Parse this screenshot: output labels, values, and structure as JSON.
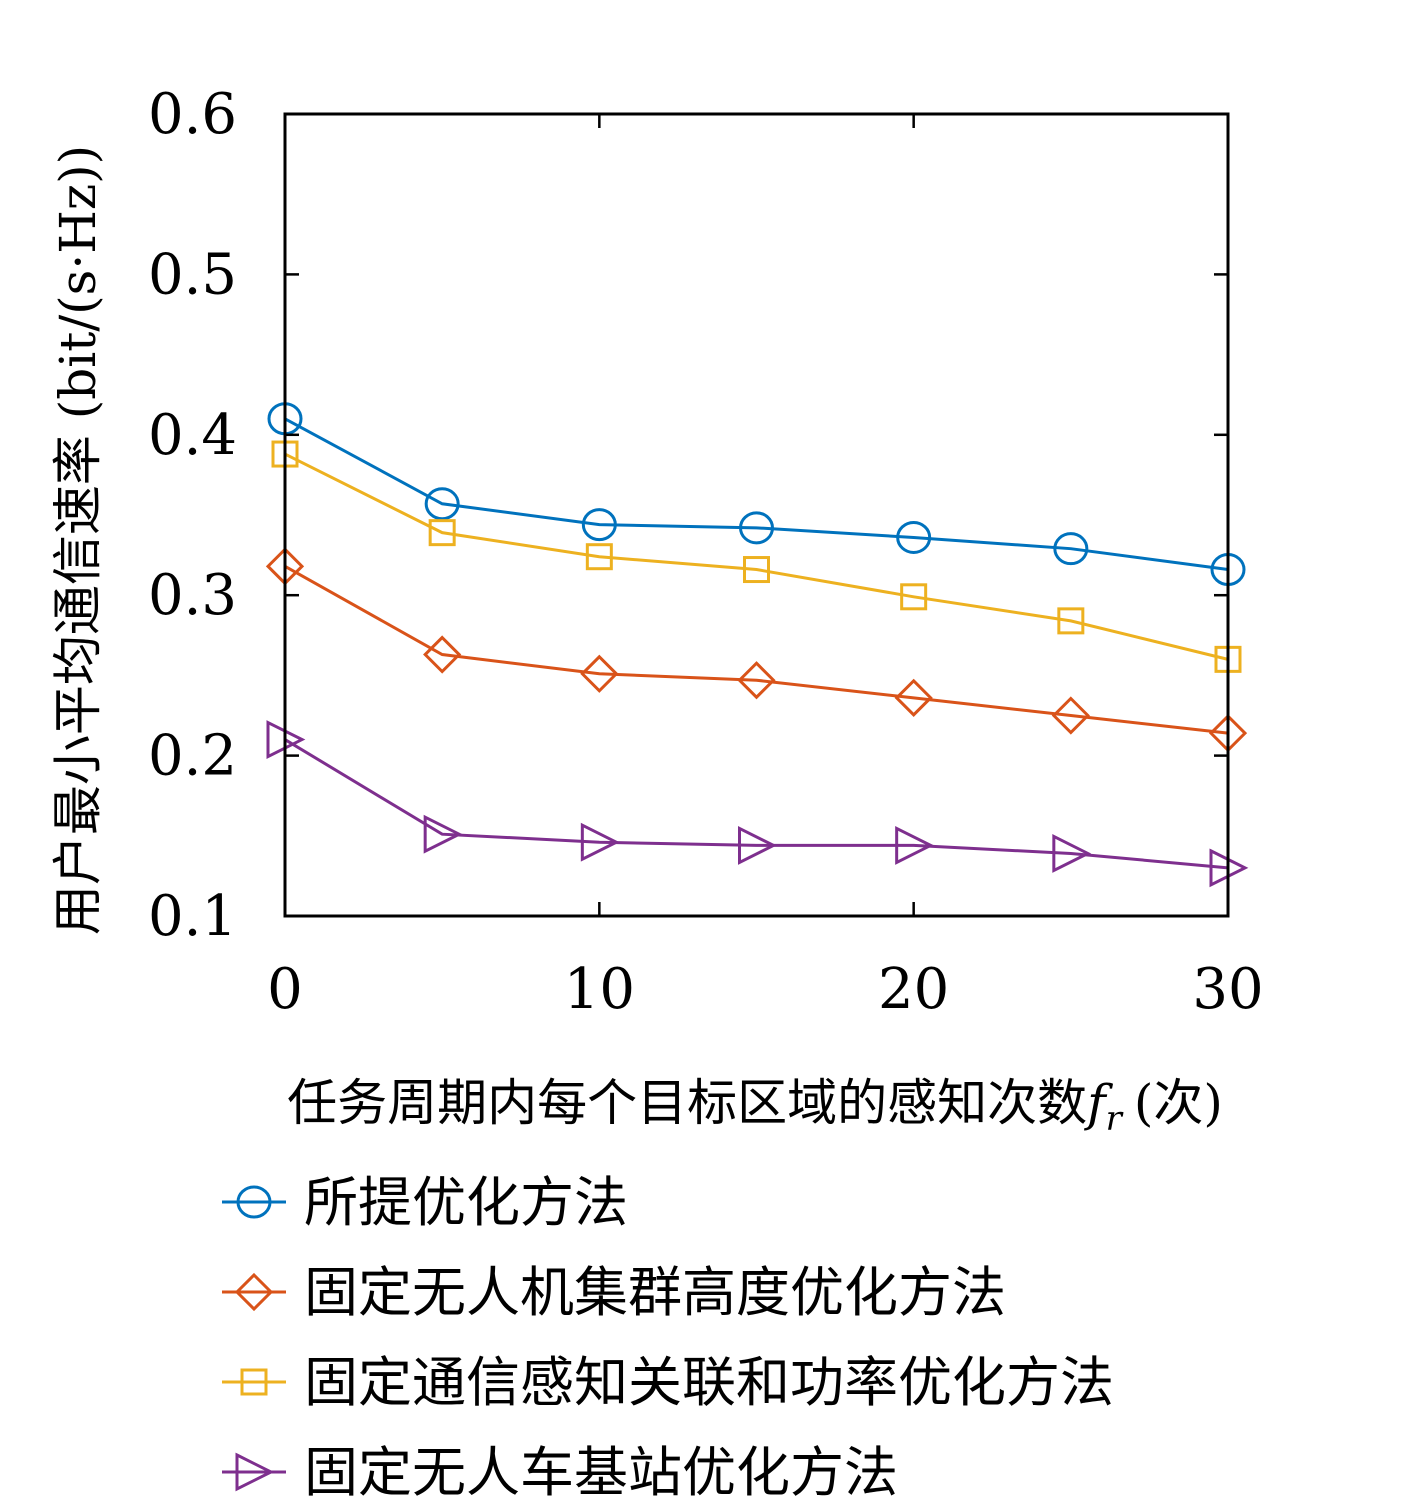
{
  "chart_data": {
    "type": "line",
    "x": [
      0,
      5,
      10,
      15,
      20,
      25,
      30
    ],
    "xticks": [
      "0",
      "10",
      "20",
      "30"
    ],
    "yticks": [
      "0.1",
      "0.2",
      "0.3",
      "0.4",
      "0.5",
      "0.6"
    ],
    "xlim": [
      0,
      30
    ],
    "ylim": [
      0.1,
      0.6
    ],
    "xlabel": "任务周期内每个目标区域的感知次数",
    "xlabel_var": "f",
    "xlabel_sub": "r",
    "xlabel_unit": "(次)",
    "ylabel": "用户最小平均通信速率 (bit/(s·Hz))",
    "grid": false,
    "legend_position": "bottom",
    "series": [
      {
        "name": "所提优化方法",
        "marker": "circle",
        "color": "#0072BD",
        "values": [
          0.41,
          0.357,
          0.344,
          0.342,
          0.336,
          0.329,
          0.316
        ]
      },
      {
        "name": "固定无人机集群高度优化方法",
        "marker": "diamond",
        "color": "#D95319",
        "values": [
          0.318,
          0.263,
          0.251,
          0.247,
          0.236,
          0.225,
          0.214
        ]
      },
      {
        "name": "固定通信感知关联和功率优化方法",
        "marker": "square",
        "color": "#EDB120",
        "values": [
          0.388,
          0.339,
          0.324,
          0.316,
          0.299,
          0.284,
          0.26
        ]
      },
      {
        "name": "固定无人车基站优化方法",
        "marker": "triangle-right",
        "color": "#7E2F8E",
        "values": [
          0.21,
          0.151,
          0.146,
          0.144,
          0.144,
          0.139,
          0.13
        ]
      }
    ]
  }
}
